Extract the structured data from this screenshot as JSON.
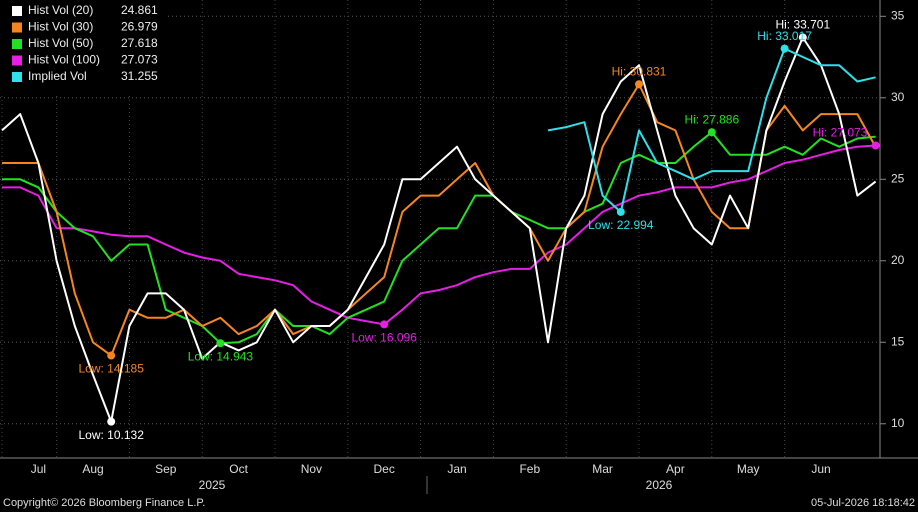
{
  "chart_data": {
    "type": "line",
    "categories": [
      null,
      null,
      "Jul",
      null,
      null,
      "Aug",
      null,
      null,
      null,
      "Sep",
      null,
      null,
      null,
      "Oct",
      null,
      null,
      null,
      "Nov",
      null,
      null,
      null,
      "Dec",
      null,
      null,
      null,
      "Jan",
      null,
      null,
      null,
      "Feb",
      null,
      null,
      null,
      "Mar",
      null,
      null,
      null,
      "Apr",
      null,
      null,
      null,
      "May",
      null,
      null,
      null,
      "Jun",
      null,
      null,
      null
    ],
    "years": [
      "2025",
      "2026"
    ],
    "series": [
      {
        "name": "Hist Vol (20)",
        "color": "#ffffff",
        "low_label": "Low: 10.132",
        "high_label": "Hi: 33.701",
        "values": [
          28,
          29,
          26,
          20,
          16,
          13,
          10.132,
          16,
          18,
          18,
          17,
          14,
          15,
          14.5,
          15,
          17,
          15,
          16,
          16,
          17,
          19,
          21,
          25,
          25,
          26,
          27,
          25,
          24,
          23,
          22,
          15,
          22,
          24,
          29,
          31,
          32,
          28,
          24,
          22,
          21,
          24,
          22,
          28,
          31,
          33.701,
          32,
          29,
          24,
          24.861
        ]
      },
      {
        "name": "Hist Vol (30)",
        "color": "#f5861f",
        "low_label": "Low: 14.185",
        "high_label": "Hi: 30.831",
        "values": [
          26,
          26,
          26,
          23,
          18,
          15,
          14.185,
          17,
          16.5,
          16.5,
          17,
          16,
          16.5,
          15.5,
          16,
          17,
          15.5,
          16,
          16,
          17,
          18,
          19,
          23,
          24,
          24,
          25,
          26,
          24,
          23,
          22,
          20,
          22,
          23,
          27,
          29,
          30.831,
          28.5,
          28,
          25,
          23,
          22,
          22,
          28,
          29.5,
          28,
          29,
          29,
          29,
          26.979
        ]
      },
      {
        "name": "Hist Vol (50)",
        "color": "#22e022",
        "low_label": "Low: 14.943",
        "high_label": "Hi: 27.886",
        "values": [
          25,
          25,
          24.5,
          23,
          22,
          21.5,
          20,
          21,
          21,
          17,
          16.5,
          16,
          14.943,
          15,
          15.5,
          17,
          16,
          16,
          15.5,
          16.5,
          17,
          17.5,
          20,
          21,
          22,
          22,
          24,
          24,
          23,
          22.5,
          22,
          22,
          23,
          23.5,
          26,
          26.5,
          26,
          26,
          27,
          27.886,
          26.5,
          26.5,
          26.5,
          27,
          26.5,
          27.5,
          27,
          27.5,
          27.618
        ]
      },
      {
        "name": "Hist Vol (100)",
        "color": "#e61ee6",
        "low_label": "Low: 16.096",
        "high_label": "Hi: 27.073",
        "values": [
          24.5,
          24.5,
          24,
          22,
          22,
          21.8,
          21.6,
          21.5,
          21.5,
          21,
          20.5,
          20.2,
          20,
          19.2,
          19,
          18.8,
          18.5,
          17.5,
          17,
          16.5,
          16.3,
          16.096,
          17,
          18,
          18.2,
          18.5,
          19,
          19.3,
          19.5,
          19.5,
          20.5,
          21,
          22,
          23,
          23.5,
          24,
          24.2,
          24.5,
          24.5,
          24.5,
          24.8,
          25,
          25.5,
          26,
          26.2,
          26.5,
          26.8,
          27,
          27.073
        ]
      },
      {
        "name": "Implied Vol",
        "color": "#2ee0e8",
        "low_label": "Low: 22.994",
        "high_label": "Hi: 33.017",
        "values": [
          null,
          null,
          null,
          null,
          null,
          null,
          null,
          null,
          null,
          null,
          null,
          null,
          null,
          null,
          null,
          null,
          null,
          null,
          null,
          null,
          null,
          null,
          null,
          null,
          null,
          null,
          null,
          null,
          null,
          null,
          28,
          28.2,
          28.5,
          24,
          22.994,
          28,
          26,
          25.5,
          25,
          25.5,
          25.5,
          25.5,
          30,
          33.017,
          32.5,
          32,
          32,
          31,
          31.255
        ]
      }
    ],
    "ylim": [
      7.9,
      36
    ],
    "yticks": [
      10,
      15,
      20,
      25,
      30,
      35
    ],
    "grid": true
  },
  "footer": {
    "copyright": "Copyright© 2026 Bloomberg Finance L.P.",
    "timestamp": "05-Jul-2026 18:18:42"
  }
}
